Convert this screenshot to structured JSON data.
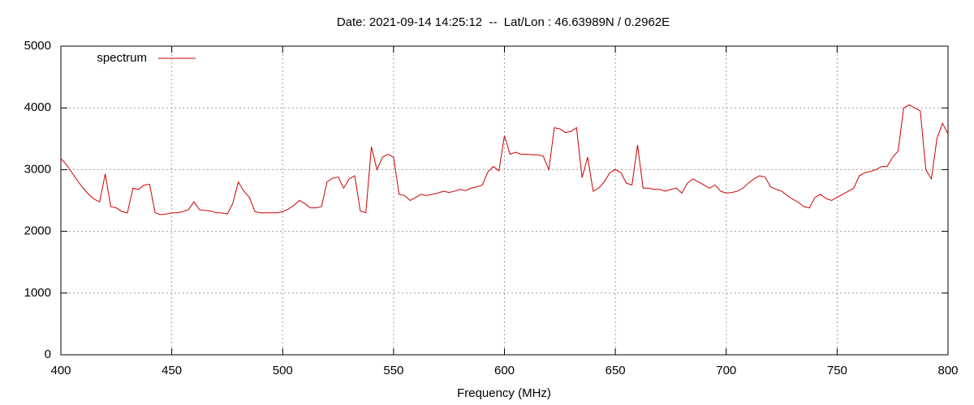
{
  "chart_data": {
    "type": "line",
    "title": "Date: 2021-09-14 14:25:12  --  Lat/Lon : 46.63989N / 0.2962E",
    "x_label": "Frequency (MHz)",
    "x": [
      400,
      402.5,
      405,
      407.5,
      410,
      412.5,
      415,
      417.5,
      420,
      422.5,
      425,
      427.5,
      430,
      432.5,
      435,
      437.5,
      440,
      442.5,
      445,
      447.5,
      450,
      452.5,
      455,
      457.5,
      460,
      462.5,
      465,
      467.5,
      470,
      472.5,
      475,
      477.5,
      480,
      482.5,
      485,
      487.5,
      490,
      492.5,
      495,
      497.5,
      500,
      502.5,
      505,
      507.5,
      510,
      512.5,
      515,
      517.5,
      520,
      522.5,
      525,
      527.5,
      530,
      532.5,
      535,
      537.5,
      540,
      542.5,
      545,
      547.5,
      550,
      552.5,
      555,
      557.5,
      560,
      562.5,
      565,
      567.5,
      570,
      572.5,
      575,
      577.5,
      580,
      582.5,
      585,
      587.5,
      590,
      592.5,
      595,
      597.5,
      600,
      602.5,
      605,
      607.5,
      610,
      612.5,
      615,
      617.5,
      620,
      622.5,
      625,
      627.5,
      630,
      632.5,
      635,
      637.5,
      640,
      642.5,
      645,
      647.5,
      650,
      652.5,
      655,
      657.5,
      660,
      662.5,
      665,
      667.5,
      670,
      672.5,
      675,
      677.5,
      680,
      682.5,
      685,
      687.5,
      690,
      692.5,
      695,
      697.5,
      700,
      702.5,
      705,
      707.5,
      710,
      712.5,
      715,
      717.5,
      720,
      722.5,
      725,
      727.5,
      730,
      732.5,
      735,
      737.5,
      740,
      742.5,
      745,
      747.5,
      750,
      752.5,
      755,
      757.5,
      760,
      762.5,
      765,
      767.5,
      770,
      772.5,
      775,
      777.5,
      780,
      782.5,
      785,
      787.5,
      790,
      792.5,
      795,
      797.5,
      800
    ],
    "series": [
      {
        "name": "spectrum",
        "color": "#cc0000",
        "values": [
          3180,
          3080,
          2950,
          2820,
          2700,
          2600,
          2520,
          2480,
          2930,
          2400,
          2380,
          2320,
          2300,
          2700,
          2680,
          2750,
          2760,
          2300,
          2270,
          2280,
          2300,
          2300,
          2320,
          2350,
          2480,
          2350,
          2340,
          2330,
          2300,
          2300,
          2280,
          2450,
          2800,
          2650,
          2550,
          2320,
          2300,
          2300,
          2300,
          2300,
          2320,
          2360,
          2420,
          2500,
          2450,
          2380,
          2380,
          2400,
          2800,
          2860,
          2880,
          2700,
          2850,
          2900,
          2330,
          2300,
          3370,
          3000,
          3200,
          3250,
          3200,
          2600,
          2580,
          2500,
          2550,
          2600,
          2580,
          2600,
          2620,
          2650,
          2630,
          2650,
          2680,
          2660,
          2700,
          2720,
          2750,
          2960,
          3050,
          2980,
          3550,
          3250,
          3280,
          3250,
          3250,
          3240,
          3240,
          3220,
          3000,
          3680,
          3660,
          3600,
          3620,
          3680,
          2870,
          3200,
          2650,
          2700,
          2800,
          2950,
          3000,
          2950,
          2780,
          2750,
          3400,
          2700,
          2700,
          2680,
          2680,
          2650,
          2680,
          2700,
          2620,
          2780,
          2850,
          2800,
          2750,
          2700,
          2750,
          2650,
          2620,
          2630,
          2650,
          2700,
          2780,
          2850,
          2900,
          2880,
          2720,
          2680,
          2650,
          2580,
          2520,
          2470,
          2400,
          2380,
          2550,
          2600,
          2530,
          2500,
          2550,
          2600,
          2650,
          2700,
          2900,
          2950,
          2970,
          3000,
          3050,
          3050,
          3200,
          3300,
          4000,
          4050,
          4000,
          3950,
          3000,
          2850,
          3500,
          3750,
          3580
        ]
      }
    ],
    "xlim": [
      400,
      800
    ],
    "xticks": [
      400,
      450,
      500,
      550,
      600,
      650,
      700,
      750,
      800
    ],
    "ylim": [
      0,
      5000
    ],
    "yticks": [
      0,
      1000,
      2000,
      3000,
      4000,
      5000
    ],
    "grid": true,
    "legend": "top-left"
  }
}
